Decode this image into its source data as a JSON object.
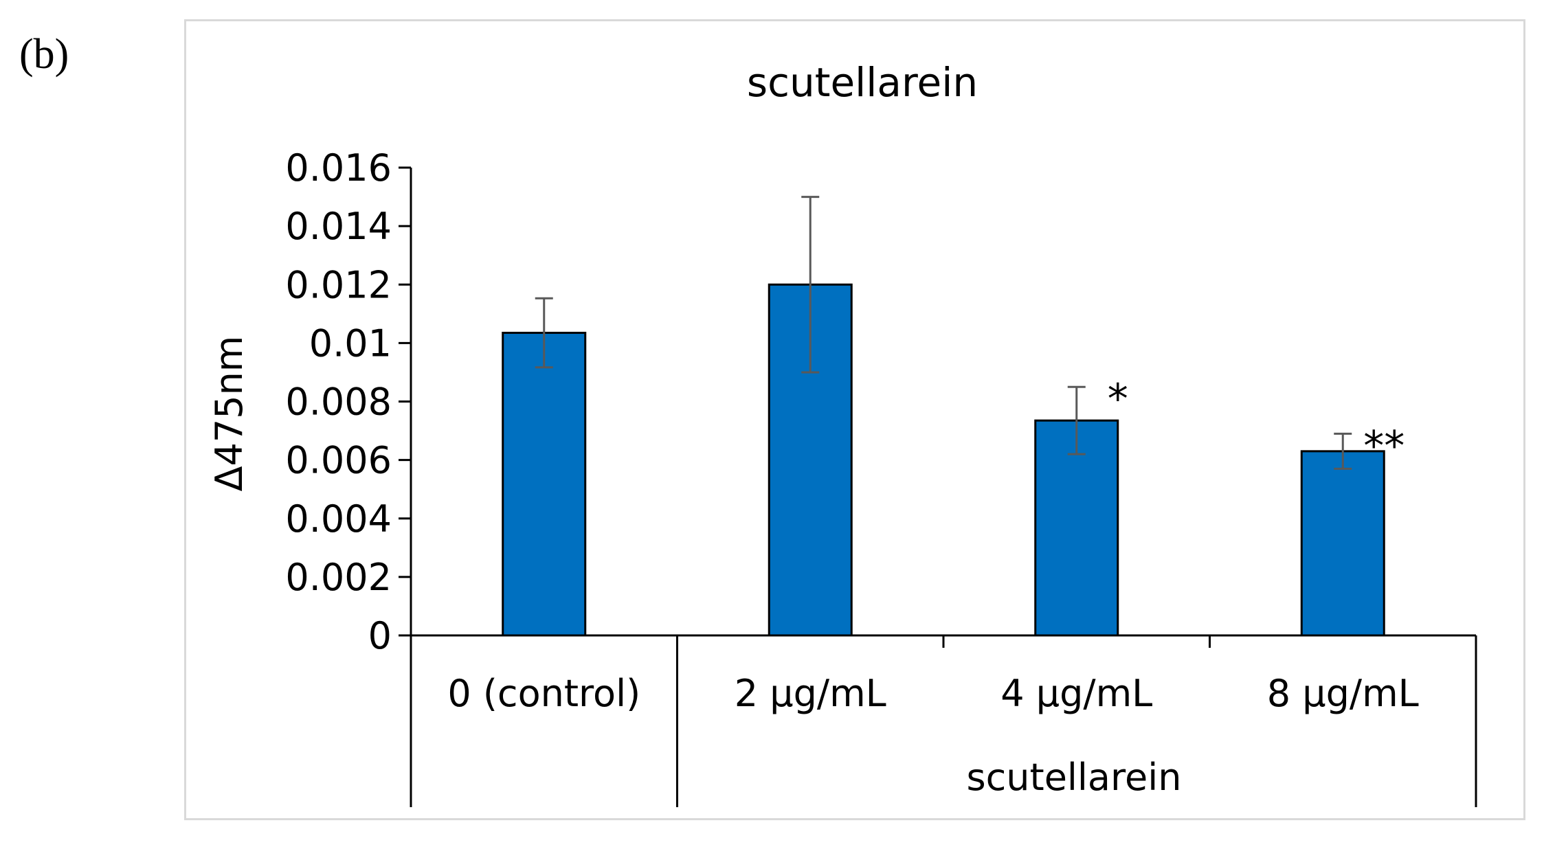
{
  "panel_label": "(b)",
  "chart_data": {
    "type": "bar",
    "title": "scutellarein",
    "ylabel": "Δ475nm",
    "xlabel": "",
    "ylim": [
      0,
      0.016
    ],
    "yticks": [
      "0",
      "0.002",
      "0.004",
      "0.006",
      "0.008",
      "0.01",
      "0.012",
      "0.014",
      "0.016"
    ],
    "categories": [
      "0 (control)",
      "2 µg/mL",
      "4 µg/mL",
      "8 µg/mL"
    ],
    "group_label": "scutellarein",
    "series": [
      {
        "name": "Δ475nm",
        "color": "#0070C0",
        "values": [
          0.01035,
          0.012,
          0.00735,
          0.0063
        ],
        "error": [
          0.00118,
          0.003,
          0.00115,
          0.0006
        ]
      }
    ],
    "significance": [
      "",
      "",
      "*",
      "**"
    ]
  }
}
